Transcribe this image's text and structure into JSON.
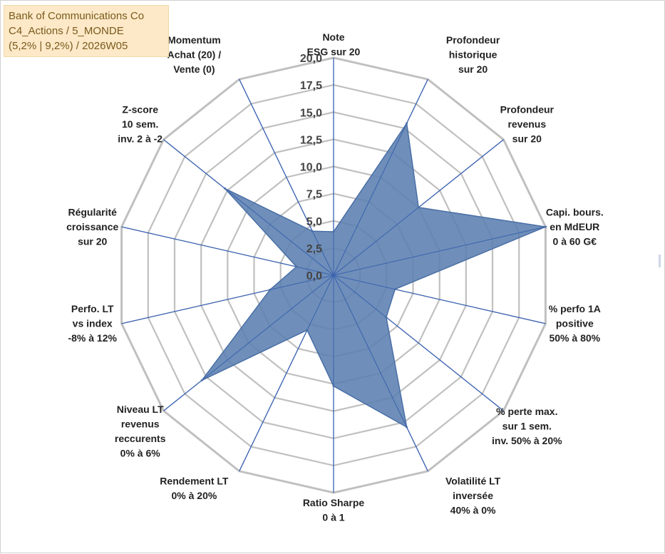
{
  "legend": {
    "line1": "Bank of Communications Co",
    "line2": "C4_Actions / 5_MONDE",
    "line3": "(5,2% | 9,2%) / 2026W05"
  },
  "colors": {
    "grid": "#c0c0c0",
    "spoke": "#3b62b0",
    "fill": "#5b7fb0",
    "stroke": "#4a6fa6"
  },
  "chart_data": {
    "type": "radar",
    "title": "Bank of Communications Co",
    "rmin": 0,
    "rmax": 20,
    "tick_step": 2.5,
    "tick_labels": [
      "0,0",
      "2,5",
      "5,0",
      "7,5",
      "10,0",
      "12,5",
      "15,0",
      "17,5",
      "20,0"
    ],
    "axes": [
      {
        "lines": [
          "Note",
          "ESG sur 20"
        ],
        "value": 4.0
      },
      {
        "lines": [
          "Profondeur",
          "historique",
          "sur 20"
        ],
        "value": 15.5
      },
      {
        "lines": [
          "Profondeur",
          "revenus",
          "sur 20"
        ],
        "value": 10.0
      },
      {
        "lines": [
          "Capi. bours.",
          "en MdEUR",
          "0 à 60 G€"
        ],
        "value": 20.0
      },
      {
        "lines": [
          "% perfo 1A",
          "positive",
          "50% à 80%"
        ],
        "value": 5.8
      },
      {
        "lines": [
          "% perte max.",
          "sur 1 sem.",
          "inv. 50% à 20%"
        ],
        "value": 6.2
      },
      {
        "lines": [
          "Volatilité LT",
          "inversée",
          "40% à 0%"
        ],
        "value": 15.5
      },
      {
        "lines": [
          "Ratio Sharpe",
          "0 à 1"
        ],
        "value": 10.2
      },
      {
        "lines": [
          "Rendement LT",
          "0% à 20%"
        ],
        "value": 5.6
      },
      {
        "lines": [
          "Niveau LT",
          "revenus",
          "reccurents",
          "0% à 6%"
        ],
        "value": 15.5
      },
      {
        "lines": [
          "Perfo. LT",
          "vs index",
          "-8% à 12%"
        ],
        "value": 6.0
      },
      {
        "lines": [
          "Régularité",
          "croissance",
          "sur 20"
        ],
        "value": 3.5
      },
      {
        "lines": [
          "Z-score",
          "10 sem.",
          "inv. 2 à -2"
        ],
        "value": 12.8
      },
      {
        "lines": [
          "Momentum",
          "Achat (20) /",
          "Vente (0)"
        ],
        "value": 4.5
      }
    ]
  }
}
